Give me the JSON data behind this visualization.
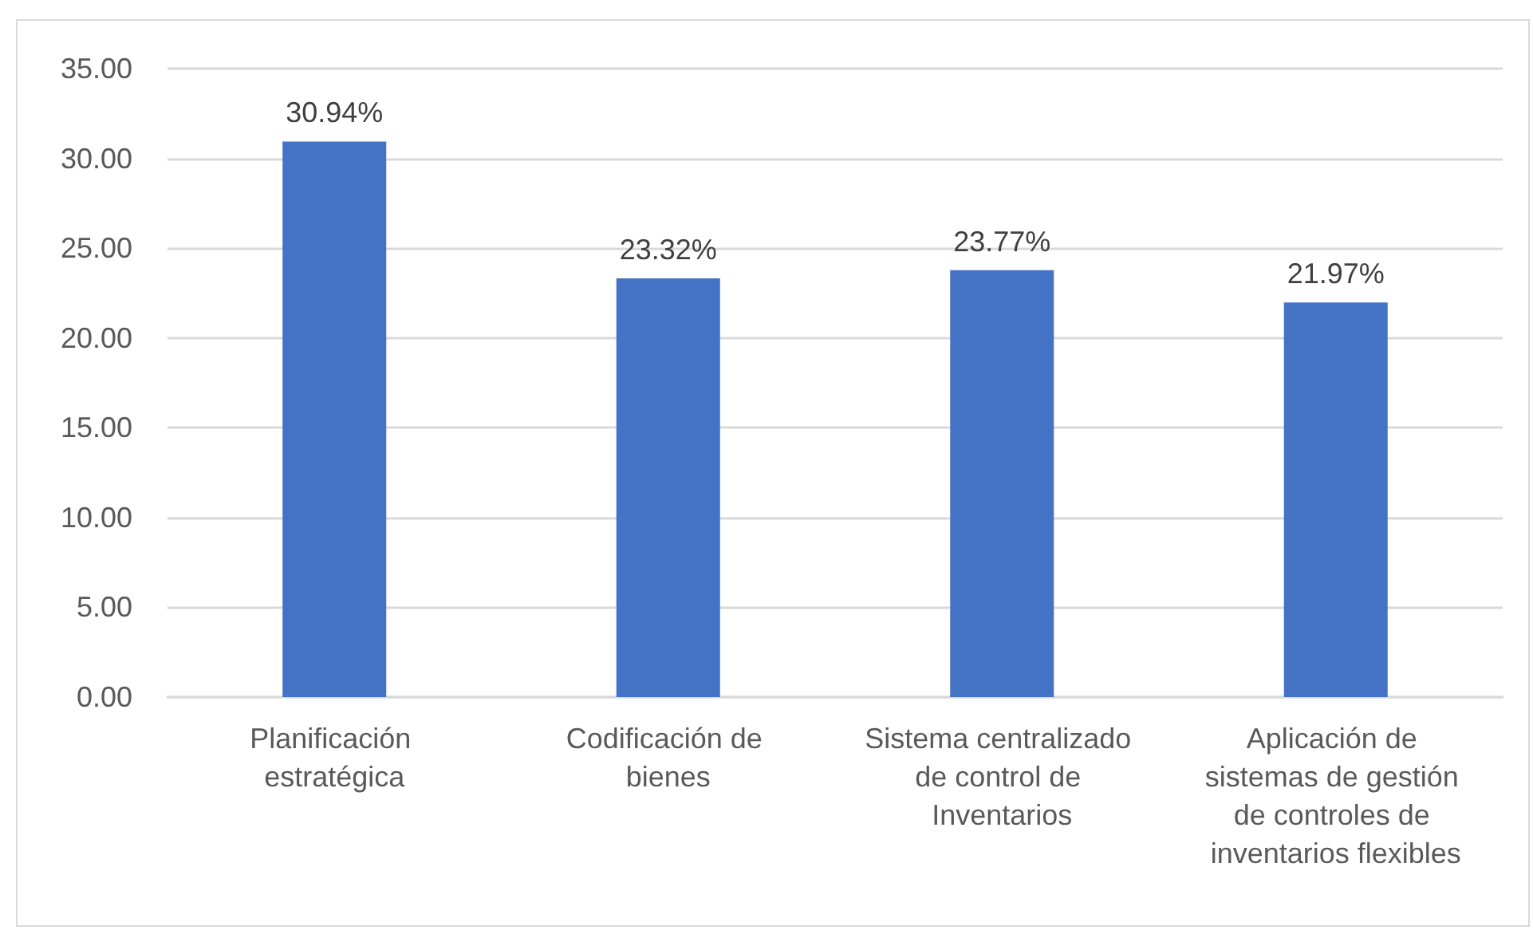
{
  "chart_data": {
    "type": "bar",
    "categories": [
      "Planificación estratégica",
      "Codificación de bienes",
      "Sistema centralizado de control de Inventarios",
      "Aplicación de sistemas de gestión de controles de inventarios flexibles"
    ],
    "values": [
      30.94,
      23.32,
      23.77,
      21.97
    ],
    "value_labels": [
      "30.94%",
      "23.32%",
      "23.77%",
      "21.97%"
    ],
    "color": "#4472c4",
    "ylim": [
      0,
      35
    ],
    "yticks": [
      {
        "value": 0,
        "label": "0.00"
      },
      {
        "value": 5,
        "label": "5.00"
      },
      {
        "value": 10,
        "label": "10.00"
      },
      {
        "value": 15,
        "label": "15.00"
      },
      {
        "value": 20,
        "label": "20.00"
      },
      {
        "value": 25,
        "label": "25.00"
      },
      {
        "value": 30,
        "label": "30.00"
      },
      {
        "value": 35,
        "label": "35.00"
      }
    ],
    "grid": "y"
  }
}
